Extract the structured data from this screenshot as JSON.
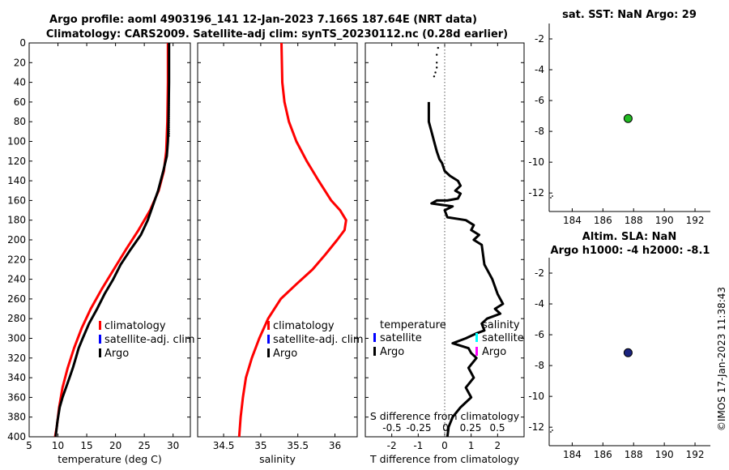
{
  "header": {
    "title_line1": "Argo profile: aoml 4903196_141 12-Jan-2023 7.166S 187.64E (NRT data)",
    "title_line2": "Climatology: CARS2009. Satellite-adj clim: synTS_20230112.nc (0.28d earlier)"
  },
  "side_label": "©IMOS 17-Jan-2023 11:38:43",
  "colors": {
    "climatology": "#ff0000",
    "satellite": "#0000ff",
    "argo": "#000000",
    "sat_salinity": "#00ffff",
    "argo_salinity": "#ff00ff",
    "sst_marker": "#22bb22",
    "sla_marker": "#1a237e"
  },
  "chart_data": [
    {
      "id": "temperature",
      "type": "line",
      "xlabel": "temperature (deg C)",
      "ylabel": "",
      "xlim": [
        5,
        33
      ],
      "ylim": [
        0,
        400
      ],
      "y_reversed": true,
      "xticks": [
        5,
        10,
        15,
        20,
        25,
        30
      ],
      "yticks": [
        0,
        20,
        40,
        60,
        80,
        100,
        120,
        140,
        160,
        180,
        200,
        220,
        240,
        260,
        280,
        300,
        320,
        340,
        360,
        380,
        400
      ],
      "legend": [
        "climatology",
        "satellite-adj. clim",
        "Argo"
      ],
      "series": [
        {
          "name": "climatology",
          "color": "#ff0000",
          "style": "solid",
          "x": [
            29.1,
            29.1,
            29.0,
            28.8,
            28.4,
            27.5,
            26.0,
            24.0,
            21.8,
            19.7,
            17.6,
            15.7,
            14.1,
            12.8,
            11.7,
            10.8,
            10.2,
            9.8,
            9.5
          ],
          "y": [
            0,
            40,
            80,
            110,
            130,
            150,
            170,
            190,
            210,
            230,
            250,
            270,
            290,
            310,
            330,
            350,
            370,
            390,
            400
          ]
        },
        {
          "name": "Argo",
          "color": "#000000",
          "style": "solid",
          "x": [
            29.3,
            29.3,
            29.2,
            29.1,
            28.9,
            28.3,
            27.4,
            26.5,
            25.6,
            24.4,
            22.6,
            20.9,
            19.6,
            18.1,
            16.8,
            15.4,
            14.3,
            13.6,
            13.1,
            12.6,
            12.0,
            11.4,
            10.8,
            10.3,
            9.9,
            9.6
          ],
          "y": [
            0,
            40,
            80,
            100,
            115,
            130,
            150,
            165,
            180,
            195,
            210,
            225,
            240,
            255,
            270,
            285,
            300,
            310,
            320,
            330,
            340,
            350,
            360,
            370,
            385,
            400
          ]
        }
      ]
    },
    {
      "id": "salinity",
      "type": "line",
      "xlabel": "salinity",
      "ylabel": "",
      "xlim": [
        34.15,
        36.3
      ],
      "ylim": [
        0,
        400
      ],
      "y_reversed": true,
      "xticks": [
        34.5,
        35,
        35.5,
        36
      ],
      "legend": [
        "climatology",
        "satellite-adj. clim",
        "Argo"
      ],
      "series": [
        {
          "name": "climatology",
          "color": "#ff0000",
          "style": "solid",
          "x": [
            35.28,
            35.29,
            35.32,
            35.38,
            35.48,
            35.62,
            35.78,
            35.95,
            36.07,
            36.15,
            36.13,
            36.03,
            35.87,
            35.7,
            35.48,
            35.27,
            35.1,
            34.98,
            34.88,
            34.8,
            34.76,
            34.73,
            34.71
          ],
          "y": [
            0,
            40,
            60,
            80,
            100,
            120,
            140,
            160,
            170,
            180,
            190,
            200,
            215,
            230,
            245,
            260,
            280,
            300,
            320,
            340,
            360,
            380,
            400
          ]
        }
      ]
    },
    {
      "id": "difference",
      "type": "line",
      "xlabel": "T difference from climatology",
      "ylabel": "",
      "xlim": [
        -3,
        3
      ],
      "ylim": [
        0,
        400
      ],
      "y_reversed": true,
      "xticks": [
        -2,
        -1,
        0,
        1,
        2
      ],
      "top_label": "S difference from climatology",
      "top_ticks": [
        "-0.5",
        "-0.25",
        "0",
        "0.25",
        "0.5"
      ],
      "legend_left": [
        "temperature",
        "satellite",
        "Argo"
      ],
      "legend_right": [
        "salinity",
        "satellite",
        "Argo"
      ],
      "series": [
        {
          "name": "T difference",
          "color": "#000000",
          "style": "solid",
          "x": [
            -0.6,
            -0.6,
            -0.5,
            -0.45,
            -0.4,
            -0.3,
            -0.2,
            -0.1,
            0.0,
            0.2,
            0.5,
            0.6,
            0.4,
            0.6,
            0.5,
            0.1,
            -0.3,
            -0.5,
            0.3,
            0.0,
            0.1,
            0.8,
            1.1,
            1.0,
            1.3,
            1.1,
            1.4,
            1.5,
            1.8,
            2.0,
            2.2,
            1.9,
            2.1,
            1.6,
            1.4,
            1.5,
            1.2,
            0.8,
            0.3,
            0.9,
            1.0,
            1.2,
            0.9,
            1.1,
            0.8,
            1.0,
            0.6,
            0.3,
            0.15,
            0.1
          ],
          "y": [
            60,
            80,
            90,
            95,
            100,
            110,
            118,
            122,
            130,
            135,
            140,
            145,
            150,
            153,
            158,
            160,
            160,
            163,
            166,
            170,
            177,
            180,
            185,
            190,
            195,
            200,
            205,
            225,
            240,
            255,
            265,
            270,
            275,
            280,
            285,
            292,
            295,
            300,
            305,
            310,
            315,
            320,
            330,
            340,
            350,
            360,
            370,
            380,
            390,
            400
          ]
        }
      ]
    },
    {
      "id": "sst-map",
      "type": "scatter",
      "title": "sat. SST: NaN Argo: 29",
      "xlim": [
        182.5,
        193
      ],
      "ylim": [
        -13.2,
        -1
      ],
      "xticks": [
        184,
        186,
        188,
        190,
        192
      ],
      "yticks": [
        -2,
        -4,
        -6,
        -8,
        -10,
        -12
      ],
      "series": [
        {
          "name": "Argo position",
          "x": [
            187.64
          ],
          "y": [
            -7.166
          ]
        }
      ]
    },
    {
      "id": "sla-map",
      "type": "scatter",
      "title": "Altim. SLA: NaN",
      "subtitle": "Argo h1000: -4 h2000: -8.1",
      "xlim": [
        182.5,
        193
      ],
      "ylim": [
        -13.2,
        -1
      ],
      "xticks": [
        184,
        186,
        188,
        190,
        192
      ],
      "yticks": [
        -2,
        -4,
        -6,
        -8,
        -10,
        -12
      ],
      "series": [
        {
          "name": "Argo position",
          "x": [
            187.64
          ],
          "y": [
            -7.166
          ]
        }
      ]
    }
  ]
}
